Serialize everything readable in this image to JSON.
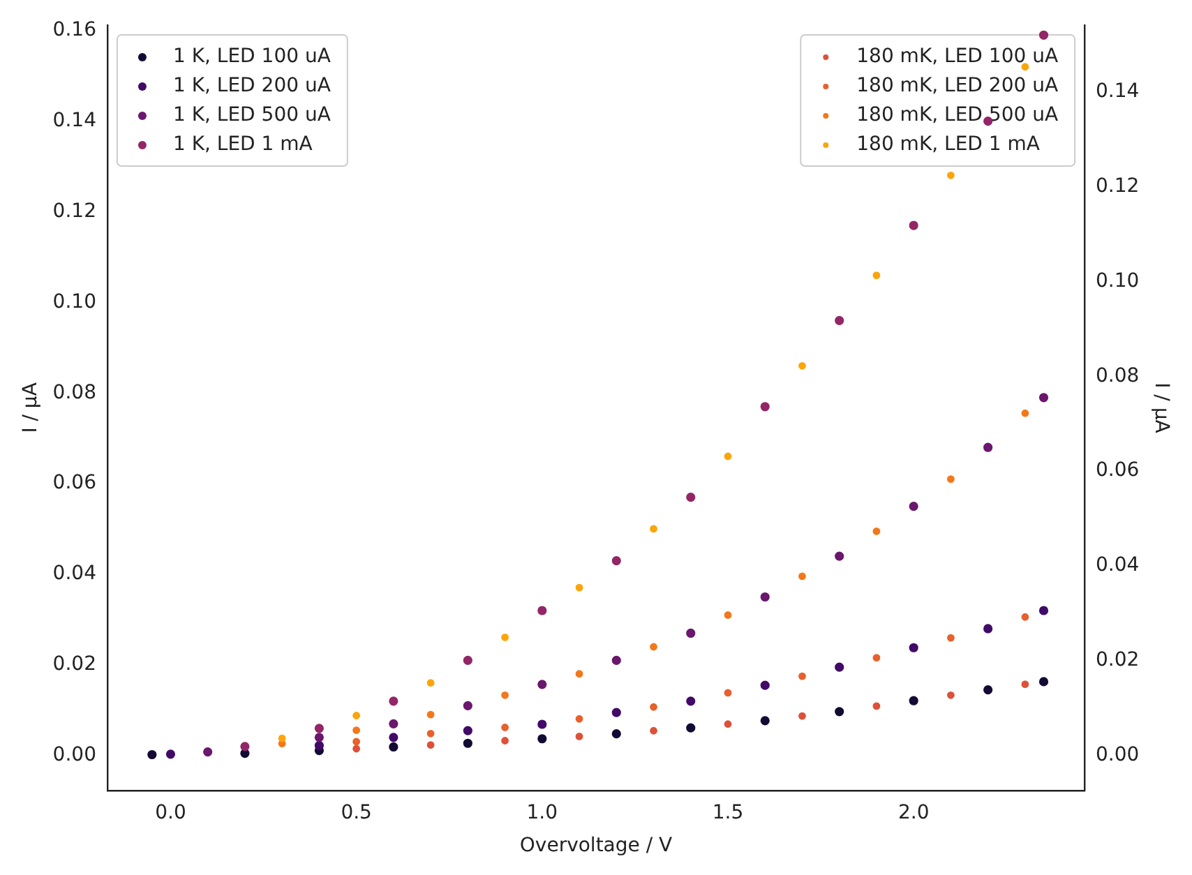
{
  "chart_data": {
    "type": "scatter",
    "xlabel": "Overvoltage / V",
    "ylabel": "I / µA",
    "y2label": "I / µA",
    "xlim": [
      -0.17,
      2.46
    ],
    "xticks": [
      {
        "value": 0,
        "label": "0.0"
      },
      {
        "value": 0.5,
        "label": "0.5"
      },
      {
        "value": 1,
        "label": "1.0"
      },
      {
        "value": 1.5,
        "label": "1.5"
      },
      {
        "value": 2,
        "label": "2.0"
      }
    ],
    "ylim": [
      -0.0077,
      0.1612
    ],
    "yticks": [
      {
        "value": 0,
        "label": "0.00"
      },
      {
        "value": 0.02,
        "label": "0.02"
      },
      {
        "value": 0.04,
        "label": "0.04"
      },
      {
        "value": 0.06,
        "label": "0.06"
      },
      {
        "value": 0.08,
        "label": "0.08"
      },
      {
        "value": 0.1,
        "label": "0.10"
      },
      {
        "value": 0.12,
        "label": "0.12"
      },
      {
        "value": 0.14,
        "label": "0.14"
      },
      {
        "value": 0.16,
        "label": "0.16"
      }
    ],
    "y2lim": [
      -0.0074,
      0.1541
    ],
    "y2ticks": [
      {
        "value": 0,
        "label": "0.00"
      },
      {
        "value": 0.02,
        "label": "0.02"
      },
      {
        "value": 0.04,
        "label": "0.04"
      },
      {
        "value": 0.06,
        "label": "0.06"
      },
      {
        "value": 0.08,
        "label": "0.08"
      },
      {
        "value": 0.1,
        "label": "0.10"
      },
      {
        "value": 0.12,
        "label": "0.12"
      },
      {
        "value": 0.14,
        "label": "0.14"
      }
    ],
    "grid": false,
    "legend": "top",
    "marker": "circle",
    "series": [
      {
        "name": "1 K, LED 100 uA",
        "color": "#140b34",
        "x": [
          -0.05,
          0.2,
          0.4,
          0.6,
          0.8,
          1.0,
          1.2,
          1.4,
          1.6,
          1.8,
          2.0,
          2.2,
          2.35
        ],
        "values": [
          0.0002,
          0.0005,
          0.0011,
          0.0019,
          0.0027,
          0.0037,
          0.0048,
          0.0061,
          0.0077,
          0.0097,
          0.0121,
          0.0145,
          0.0163
        ]
      },
      {
        "name": "1 K, LED 200 uA",
        "color": "#420a68",
        "x": [
          0,
          0.4,
          0.6,
          0.8,
          1.0,
          1.2,
          1.4,
          1.6,
          1.8,
          2.0,
          2.2,
          2.35
        ],
        "values": [
          0.0003,
          0.0022,
          0.004,
          0.0055,
          0.0069,
          0.0095,
          0.012,
          0.0155,
          0.0195,
          0.0238,
          0.028,
          0.032
        ]
      },
      {
        "name": "1 K, LED 500 uA",
        "color": "#6a176e",
        "x": [
          0.1,
          0.4,
          0.6,
          0.8,
          1.0,
          1.2,
          1.4,
          1.6,
          1.8,
          2.0,
          2.2,
          2.35
        ],
        "values": [
          0.0008,
          0.004,
          0.007,
          0.011,
          0.0157,
          0.021,
          0.027,
          0.035,
          0.044,
          0.055,
          0.068,
          0.079
        ]
      },
      {
        "name": "1 K, LED 1 mA",
        "color": "#932667",
        "x": [
          0.2,
          0.4,
          0.6,
          0.8,
          1.0,
          1.2,
          1.4,
          1.6,
          1.8,
          2.0,
          2.2,
          2.35
        ],
        "values": [
          0.002,
          0.006,
          0.012,
          0.021,
          0.032,
          0.043,
          0.057,
          0.077,
          0.096,
          0.117,
          0.14,
          0.159
        ]
      },
      {
        "name": "180 mK, LED 100 uA",
        "color": "#dd513a",
        "axis": "y2",
        "x": [
          0.5,
          0.7,
          0.9,
          1.1,
          1.3,
          1.5,
          1.7,
          1.9,
          2.1,
          2.3
        ],
        "values": [
          0.0014,
          0.0022,
          0.0031,
          0.004,
          0.0052,
          0.0066,
          0.0083,
          0.0104,
          0.0127,
          0.015
        ]
      },
      {
        "name": "180 mK, LED 200 uA",
        "color": "#e8602c",
        "axis": "y2",
        "x": [
          0.5,
          0.7,
          0.9,
          1.1,
          1.3,
          1.5,
          1.7,
          1.9,
          2.1,
          2.3
        ],
        "values": [
          0.0029,
          0.0046,
          0.0059,
          0.0077,
          0.0102,
          0.0132,
          0.0167,
          0.0206,
          0.0248,
          0.0292
        ]
      },
      {
        "name": "180 mK, LED 500 uA",
        "color": "#f37819",
        "axis": "y2",
        "x": [
          0.3,
          0.5,
          0.7,
          0.9,
          1.1,
          1.3,
          1.5,
          1.7,
          1.9,
          2.1,
          2.3
        ],
        "values": [
          0.0025,
          0.0053,
          0.0086,
          0.0127,
          0.0172,
          0.0229,
          0.0296,
          0.0378,
          0.0473,
          0.0583,
          0.0722
        ]
      },
      {
        "name": "180 mK, LED 1 mA",
        "color": "#fca50a",
        "axis": "y2",
        "x": [
          0.3,
          0.5,
          0.7,
          0.9,
          1.1,
          1.3,
          1.5,
          1.7,
          1.9,
          2.1,
          2.3
        ],
        "values": [
          0.0036,
          0.0084,
          0.0153,
          0.0249,
          0.0354,
          0.0478,
          0.0631,
          0.0822,
          0.1013,
          0.1224,
          0.1453
        ]
      }
    ]
  }
}
